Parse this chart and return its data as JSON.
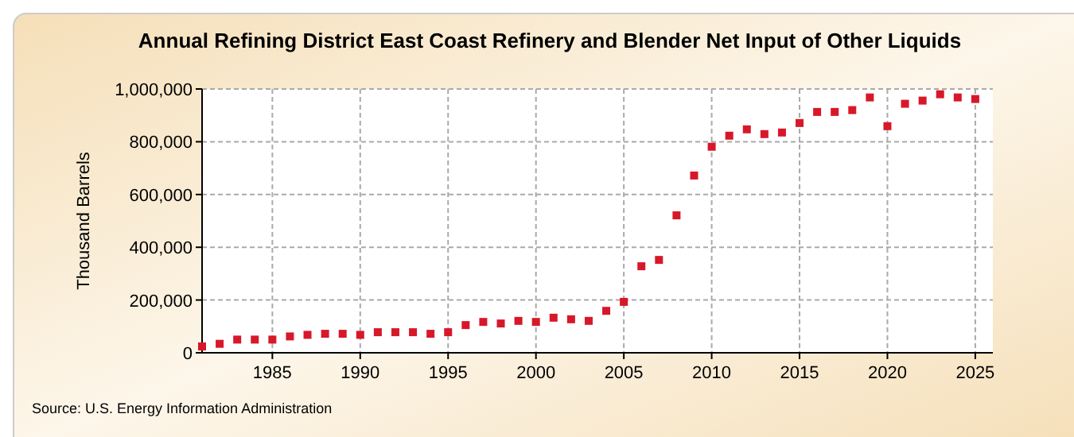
{
  "chart_data": {
    "type": "scatter",
    "title": "Annual Refining District East Coast Refinery and Blender Net Input of Other Liquids",
    "ylabel": "Thousand Barrels",
    "annotations": [
      "Source: U.S. Energy Information Administration"
    ],
    "x": [
      1981,
      1982,
      1983,
      1984,
      1985,
      1986,
      1987,
      1988,
      1989,
      1990,
      1991,
      1992,
      1993,
      1994,
      1995,
      1996,
      1997,
      1998,
      1999,
      2000,
      2001,
      2002,
      2003,
      2004,
      2005,
      2006,
      2007,
      2008,
      2009,
      2010,
      2011,
      2012,
      2013,
      2014,
      2015,
      2016,
      2017,
      2018,
      2019,
      2020,
      2021,
      2022,
      2023,
      2024,
      2025
    ],
    "series": [
      {
        "color": "#d7182a",
        "values": [
          24000,
          34000,
          50000,
          50000,
          50000,
          62000,
          68000,
          72000,
          72000,
          68000,
          78000,
          78000,
          78000,
          72000,
          78000,
          105000,
          117000,
          111000,
          121000,
          117000,
          133000,
          127000,
          121000,
          159000,
          193000,
          328000,
          352000,
          521000,
          672000,
          781000,
          823000,
          847000,
          829000,
          835000,
          871000,
          913000,
          913000,
          920000,
          968000,
          859000,
          944000,
          956000,
          980000,
          968000,
          962000
        ]
      }
    ],
    "xlim": [
      1981,
      2026
    ],
    "xticks": [
      1985,
      1990,
      1995,
      2000,
      2005,
      2010,
      2015,
      2020,
      2025
    ],
    "ylim": [
      0,
      1000000
    ],
    "yticks": [
      {
        "value": 0,
        "label": "0"
      },
      {
        "value": 200000,
        "label": "200,000"
      },
      {
        "value": 400000,
        "label": "400,000"
      },
      {
        "value": 600000,
        "label": "600,000"
      },
      {
        "value": 800000,
        "label": "800,000"
      },
      {
        "value": 1000000,
        "label": "1,000,000"
      }
    ],
    "grid": true,
    "marker": "square"
  }
}
